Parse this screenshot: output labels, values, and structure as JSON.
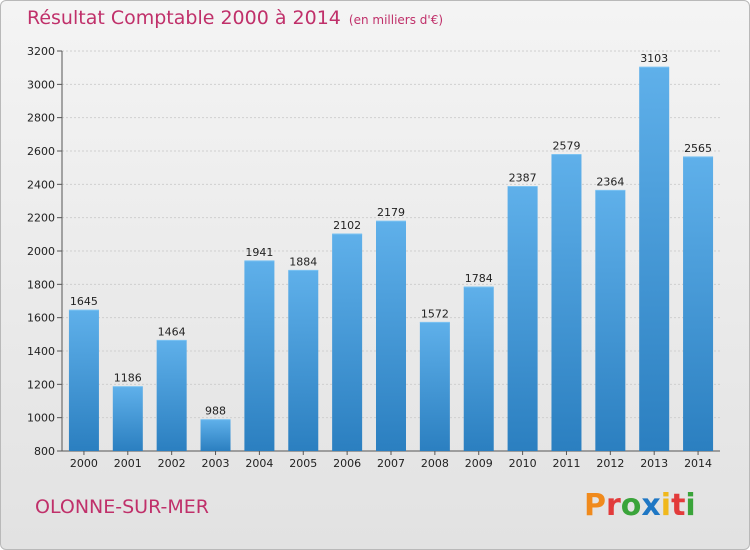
{
  "title": "Résultat Comptable 2000 à 2014",
  "subtitle": "(en milliers d'€)",
  "commune": "OLONNE-SUR-MER",
  "logo": "Proxiti",
  "colors": {
    "title": "#c0306a",
    "bar_light": "#5fb0ea",
    "bar_dark": "#2b7fc0",
    "logo_letters": [
      "#f08a1c",
      "#e23b3b",
      "#3aa43a",
      "#1f77c4",
      "#f0b81c",
      "#e23b3b",
      "#3aa43a"
    ]
  },
  "chart_data": {
    "type": "bar",
    "categories": [
      "2000",
      "2001",
      "2002",
      "2003",
      "2004",
      "2005",
      "2006",
      "2007",
      "2008",
      "2009",
      "2010",
      "2011",
      "2012",
      "2013",
      "2014"
    ],
    "values": [
      1645,
      1186,
      1464,
      988,
      1941,
      1884,
      2102,
      2179,
      1572,
      1784,
      2387,
      2579,
      2364,
      3103,
      2565
    ],
    "ylim": [
      800,
      3200
    ],
    "yticks": [
      800,
      1000,
      1200,
      1400,
      1600,
      1800,
      2000,
      2200,
      2400,
      2600,
      2800,
      3000,
      3200
    ],
    "grid": true,
    "title": "Résultat Comptable 2000 à 2014",
    "xlabel": "",
    "ylabel": ""
  }
}
